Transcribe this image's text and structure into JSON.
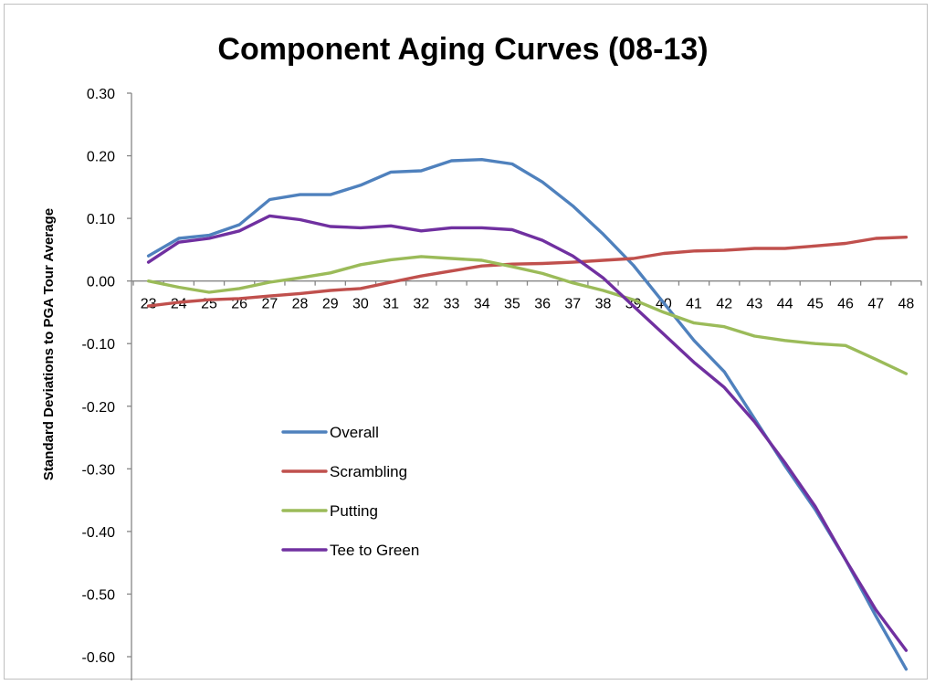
{
  "chart_data": {
    "type": "line",
    "title": "Component Aging Curves (08-13)",
    "xlabel": "",
    "ylabel": "Standard Deviations to PGA Tour Average",
    "x": [
      23,
      24,
      25,
      26,
      27,
      28,
      29,
      30,
      31,
      32,
      33,
      34,
      35,
      36,
      37,
      38,
      39,
      40,
      41,
      42,
      43,
      44,
      45,
      46,
      47,
      48
    ],
    "ylim": [
      -0.6,
      0.3
    ],
    "yticks": [
      0.3,
      0.2,
      0.1,
      0.0,
      -0.1,
      -0.2,
      -0.3,
      -0.4,
      -0.5,
      -0.6
    ],
    "ytick_labels": [
      "0.30",
      "0.20",
      "0.10",
      "0.00",
      "-0.10",
      "-0.20",
      "-0.30",
      "-0.40",
      "-0.50",
      "-0.60"
    ],
    "grid": false,
    "legend_position": "center-left",
    "series": [
      {
        "name": "Overall",
        "color": "#4f81bd",
        "values": [
          0.04,
          0.068,
          0.073,
          0.09,
          0.13,
          0.138,
          0.138,
          0.153,
          0.174,
          0.176,
          0.192,
          0.194,
          0.187,
          0.158,
          0.12,
          0.075,
          0.025,
          -0.035,
          -0.095,
          -0.145,
          -0.22,
          -0.295,
          -0.365,
          -0.445,
          -0.535,
          -0.62
        ]
      },
      {
        "name": "Scrambling",
        "color": "#c0504d",
        "values": [
          -0.04,
          -0.034,
          -0.03,
          -0.028,
          -0.024,
          -0.02,
          -0.015,
          -0.012,
          -0.002,
          0.008,
          0.016,
          0.024,
          0.027,
          0.028,
          0.03,
          0.033,
          0.036,
          0.044,
          0.048,
          0.049,
          0.052,
          0.052,
          0.056,
          0.06,
          0.068,
          0.07
        ]
      },
      {
        "name": "Putting",
        "color": "#9bbb59",
        "values": [
          0.0,
          -0.01,
          -0.018,
          -0.012,
          -0.002,
          0.005,
          0.013,
          0.026,
          0.034,
          0.039,
          0.036,
          0.033,
          0.023,
          0.012,
          -0.003,
          -0.015,
          -0.03,
          -0.05,
          -0.067,
          -0.073,
          -0.088,
          -0.095,
          -0.1,
          -0.103,
          -0.125,
          -0.148
        ]
      },
      {
        "name": "Tee to Green",
        "color": "#7030a0",
        "values": [
          0.03,
          0.062,
          0.068,
          0.08,
          0.104,
          0.098,
          0.087,
          0.085,
          0.088,
          0.08,
          0.085,
          0.085,
          0.082,
          0.065,
          0.04,
          0.005,
          -0.04,
          -0.085,
          -0.13,
          -0.17,
          -0.225,
          -0.29,
          -0.36,
          -0.445,
          -0.525,
          -0.59
        ]
      }
    ]
  }
}
